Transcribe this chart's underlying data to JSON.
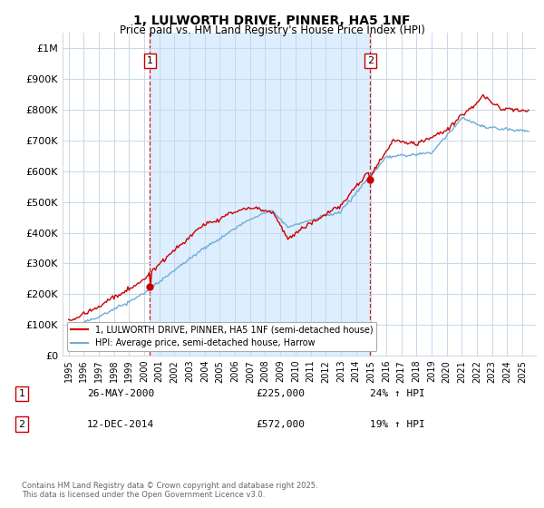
{
  "title": "1, LULWORTH DRIVE, PINNER, HA5 1NF",
  "subtitle": "Price paid vs. HM Land Registry's House Price Index (HPI)",
  "legend_line1": "1, LULWORTH DRIVE, PINNER, HA5 1NF (semi-detached house)",
  "legend_line2": "HPI: Average price, semi-detached house, Harrow",
  "annotation1_label": "1",
  "annotation1_date": "26-MAY-2000",
  "annotation1_price": "£225,000",
  "annotation1_hpi": "24% ↑ HPI",
  "annotation2_label": "2",
  "annotation2_date": "12-DEC-2014",
  "annotation2_price": "£572,000",
  "annotation2_hpi": "19% ↑ HPI",
  "footer": "Contains HM Land Registry data © Crown copyright and database right 2025.\nThis data is licensed under the Open Government Licence v3.0.",
  "red_color": "#cc0000",
  "blue_color": "#6baed6",
  "dashed_color": "#cc0000",
  "bg_color": "#ffffff",
  "highlight_color": "#ddeeff",
  "grid_color": "#c8d8e8",
  "ylim": [
    0,
    1050000
  ],
  "yticks": [
    0,
    100000,
    200000,
    300000,
    400000,
    500000,
    600000,
    700000,
    800000,
    900000,
    1000000
  ],
  "ytick_labels": [
    "£0",
    "£100K",
    "£200K",
    "£300K",
    "£400K",
    "£500K",
    "£600K",
    "£700K",
    "£800K",
    "£900K",
    "£1M"
  ],
  "sale1_x": 2000.38,
  "sale1_y": 225000,
  "sale2_x": 2014.95,
  "sale2_y": 572000,
  "vline1_x": 2000.38,
  "vline2_x": 2014.95,
  "xmin": 1995,
  "xmax": 2025
}
